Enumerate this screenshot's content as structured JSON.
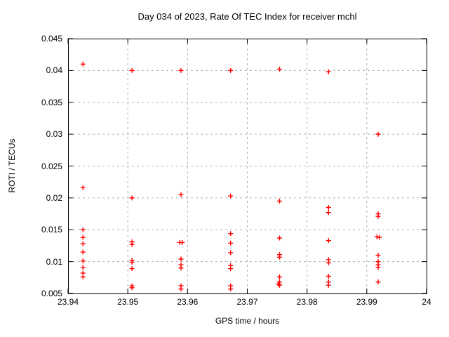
{
  "chart_data": {
    "type": "scatter",
    "title": "Day 034 of 2023, Rate Of TEC Index for receiver mchl",
    "xlabel": "GPS time / hours",
    "ylabel": "ROTI / TECUs",
    "xlim": [
      23.94,
      24
    ],
    "ylim": [
      0.005,
      0.045
    ],
    "xticks": [
      23.94,
      23.95,
      23.96,
      23.97,
      23.98,
      23.99,
      24
    ],
    "xtick_labels": [
      "23.94",
      "23.95",
      "23.96",
      "23.97",
      "23.98",
      "23.99",
      "24"
    ],
    "yticks": [
      0.005,
      0.01,
      0.015,
      0.02,
      0.025,
      0.03,
      0.035,
      0.04,
      0.045
    ],
    "ytick_labels": [
      "0.005",
      "0.01",
      "0.015",
      "0.02",
      "0.025",
      "0.03",
      "0.035",
      "0.04",
      "0.045"
    ],
    "grid": true,
    "legend_position": "none",
    "marker": "plus",
    "marker_color": "#ff0000",
    "grid_color": "#b0b0b0",
    "axis_color": "#000000",
    "series": [
      {
        "name": "ROTI",
        "points": [
          [
            23.9425,
            0.041
          ],
          [
            23.9425,
            0.0216
          ],
          [
            23.9425,
            0.015
          ],
          [
            23.9425,
            0.0138
          ],
          [
            23.9425,
            0.0128
          ],
          [
            23.9425,
            0.0115
          ],
          [
            23.9425,
            0.0101
          ],
          [
            23.9425,
            0.0091
          ],
          [
            23.9425,
            0.0082
          ],
          [
            23.9425,
            0.0076
          ],
          [
            23.9507,
            0.04
          ],
          [
            23.9507,
            0.02
          ],
          [
            23.9507,
            0.0131
          ],
          [
            23.9507,
            0.0127
          ],
          [
            23.9507,
            0.0102
          ],
          [
            23.9507,
            0.0099
          ],
          [
            23.9507,
            0.0089
          ],
          [
            23.9507,
            0.0062
          ],
          [
            23.9507,
            0.0059
          ],
          [
            23.9589,
            0.04
          ],
          [
            23.9589,
            0.0205
          ],
          [
            23.9587,
            0.013
          ],
          [
            23.9591,
            0.013
          ],
          [
            23.9589,
            0.0104
          ],
          [
            23.9589,
            0.0095
          ],
          [
            23.9589,
            0.009
          ],
          [
            23.9589,
            0.0062
          ],
          [
            23.9589,
            0.0057
          ],
          [
            23.9672,
            0.04
          ],
          [
            23.9672,
            0.0203
          ],
          [
            23.9672,
            0.0144
          ],
          [
            23.9672,
            0.0129
          ],
          [
            23.9672,
            0.0114
          ],
          [
            23.9672,
            0.0094
          ],
          [
            23.9672,
            0.0089
          ],
          [
            23.9672,
            0.0062
          ],
          [
            23.9672,
            0.0057
          ],
          [
            23.9754,
            0.0402
          ],
          [
            23.9754,
            0.0195
          ],
          [
            23.9754,
            0.0137
          ],
          [
            23.9754,
            0.0111
          ],
          [
            23.9754,
            0.0107
          ],
          [
            23.9754,
            0.0076
          ],
          [
            23.9754,
            0.0068
          ],
          [
            23.9752,
            0.0065
          ],
          [
            23.9754,
            0.0063
          ],
          [
            23.9836,
            0.0398
          ],
          [
            23.9836,
            0.0185
          ],
          [
            23.9836,
            0.0177
          ],
          [
            23.9836,
            0.0133
          ],
          [
            23.9836,
            0.0103
          ],
          [
            23.9836,
            0.0098
          ],
          [
            23.9836,
            0.0077
          ],
          [
            23.9836,
            0.0068
          ],
          [
            23.9836,
            0.0063
          ],
          [
            23.9919,
            0.03
          ],
          [
            23.9919,
            0.0175
          ],
          [
            23.9919,
            0.0171
          ],
          [
            23.9917,
            0.0139
          ],
          [
            23.9921,
            0.0138
          ],
          [
            23.9919,
            0.011
          ],
          [
            23.9919,
            0.01
          ],
          [
            23.9919,
            0.0095
          ],
          [
            23.9919,
            0.0091
          ],
          [
            23.9919,
            0.0068
          ]
        ]
      }
    ]
  }
}
